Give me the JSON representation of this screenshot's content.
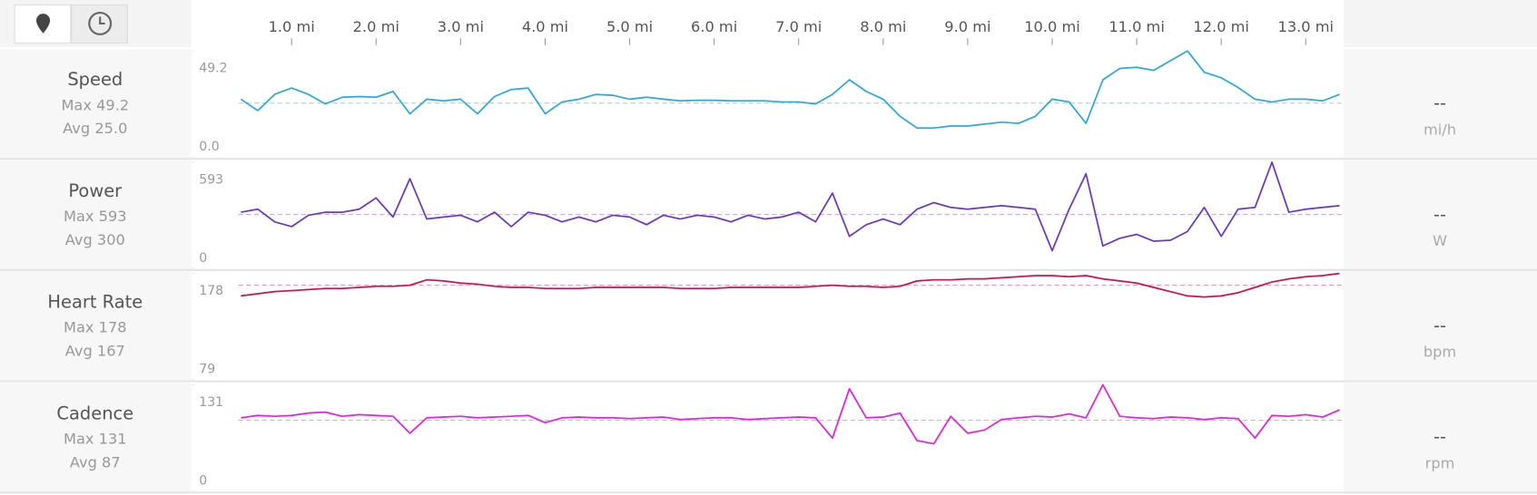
{
  "chart_data": {
    "type": "line",
    "x": [
      0.4,
      0.6,
      0.8,
      1.0,
      1.2,
      1.4,
      1.6,
      1.8,
      2.0,
      2.2,
      2.4,
      2.6,
      2.8,
      3.0,
      3.2,
      3.4,
      3.6,
      3.8,
      4.0,
      4.2,
      4.4,
      4.6,
      4.8,
      5.0,
      5.2,
      5.4,
      5.6,
      5.8,
      6.0,
      6.2,
      6.4,
      6.6,
      6.8,
      7.0,
      7.2,
      7.4,
      7.6,
      7.8,
      8.0,
      8.2,
      8.4,
      8.6,
      8.8,
      9.0,
      9.2,
      9.4,
      9.6,
      9.8,
      10.0,
      10.2,
      10.4,
      10.6,
      10.8,
      11.0,
      11.2,
      11.4,
      11.6,
      11.8,
      12.0,
      12.2,
      12.4,
      12.6,
      12.8,
      13.0,
      13.2,
      13.4
    ],
    "xlim": [
      0.37,
      13.45
    ],
    "xticks": [
      {
        "value": 1,
        "label": "1.0 mi"
      },
      {
        "value": 2,
        "label": "2.0 mi"
      },
      {
        "value": 3,
        "label": "3.0 mi"
      },
      {
        "value": 4,
        "label": "4.0 mi"
      },
      {
        "value": 5,
        "label": "5.0 mi"
      },
      {
        "value": 6,
        "label": "6.0 mi"
      },
      {
        "value": 7,
        "label": "7.0 mi"
      },
      {
        "value": 8,
        "label": "8.0 mi"
      },
      {
        "value": 9,
        "label": "9.0 mi"
      },
      {
        "value": 10,
        "label": "10.0 mi"
      },
      {
        "value": 11,
        "label": "11.0 mi"
      },
      {
        "value": 12,
        "label": "12.0 mi"
      },
      {
        "value": 13,
        "label": "13.0 mi"
      }
    ],
    "panels": [
      {
        "name": "Speed",
        "color": "#29a9e0",
        "values": [
          26.8,
          21.5,
          29,
          32,
          29,
          24.6,
          27.7,
          28,
          27.7,
          30.4,
          20,
          26.8,
          26,
          26.8,
          20,
          28,
          31.3,
          32,
          20,
          25.5,
          26.8,
          29,
          28.6,
          26.8,
          27.7,
          26.8,
          26,
          26.3,
          26.3,
          26,
          26,
          26,
          25.5,
          25.5,
          24.6,
          29,
          35.8,
          30.4,
          26.8,
          18.8,
          13.4,
          13.4,
          14.3,
          14.3,
          15.2,
          16.1,
          15.6,
          18.8,
          26.8,
          25.5,
          15.6,
          35.8,
          41.1,
          41.6,
          40.2,
          44.7,
          49.2,
          39.3,
          36.7,
          32.2,
          26.8,
          25.5,
          26.8,
          26.8,
          26,
          29
        ],
        "ylim": [
          0,
          49.2
        ],
        "yticks": [
          {
            "value": 0,
            "label": "0.0"
          },
          49.2
        ],
        "max": {
          "value": 49.2,
          "label": "Max 49.2"
        },
        "avg": {
          "value": 25,
          "label": "Avg 25.0"
        },
        "current": "--",
        "unit": "mi/h"
      },
      {
        "name": "Power",
        "color": "#6a35c9",
        "values": [
          313,
          330,
          259,
          232,
          296,
          313,
          313,
          330,
          393,
          286,
          501,
          275,
          286,
          296,
          259,
          313,
          232,
          313,
          296,
          259,
          286,
          259,
          296,
          286,
          243,
          296,
          275,
          296,
          286,
          259,
          296,
          275,
          286,
          313,
          259,
          420,
          178,
          243,
          275,
          243,
          330,
          367,
          340,
          330,
          340,
          350,
          340,
          330,
          97,
          330,
          528,
          124,
          167,
          189,
          151,
          156,
          205,
          340,
          178,
          330,
          340,
          593,
          313,
          330,
          340,
          350
        ],
        "ylim": [
          0,
          593
        ],
        "yticks": [
          0,
          593
        ],
        "max": {
          "value": 593,
          "label": "Max 593"
        },
        "avg": {
          "value": 300,
          "label": "Avg 300"
        },
        "current": "--",
        "unit": "W"
      },
      {
        "name": "Heart Rate",
        "color": "#d0104c",
        "values": [
          157,
          159,
          161,
          162,
          163,
          164,
          164,
          165,
          166,
          166,
          167,
          172,
          171,
          169,
          168,
          166,
          165,
          165,
          164,
          164,
          164,
          165,
          165,
          165,
          165,
          165,
          164,
          164,
          164,
          165,
          165,
          165,
          165,
          165,
          166,
          167,
          166,
          166,
          165,
          166,
          171,
          172,
          172,
          173,
          173,
          174,
          175,
          176,
          176,
          175,
          176,
          173,
          171,
          169,
          165,
          161,
          157,
          156,
          157,
          160,
          165,
          170,
          173,
          175,
          176,
          178
        ],
        "ylim": [
          79,
          178
        ],
        "yticks": [
          79,
          178
        ],
        "max": {
          "value": 178,
          "label": "Max 178"
        },
        "avg": {
          "value": 167,
          "label": "Avg 167"
        },
        "current": "--",
        "unit": "bpm"
      },
      {
        "name": "Cadence",
        "color": "#e61ee6",
        "values": [
          90,
          93,
          92,
          93,
          96,
          97,
          92,
          94,
          93,
          92,
          71,
          90,
          91,
          92,
          90,
          91,
          92,
          93,
          84,
          90,
          91,
          90,
          90,
          89,
          90,
          91,
          88,
          89,
          90,
          90,
          88,
          89,
          90,
          91,
          90,
          65,
          126,
          90,
          91,
          96,
          62,
          58,
          92,
          71,
          75,
          88,
          90,
          92,
          91,
          95,
          90,
          131,
          92,
          90,
          89,
          91,
          90,
          88,
          90,
          89,
          65,
          93,
          92,
          94,
          91,
          100
        ],
        "ylim": [
          0,
          131
        ],
        "yticks": [
          0,
          131
        ],
        "max": {
          "value": 131,
          "label": "Max 131"
        },
        "avg": {
          "value": 87,
          "label": "Avg 87"
        },
        "current": "--",
        "unit": "rpm"
      }
    ]
  }
}
